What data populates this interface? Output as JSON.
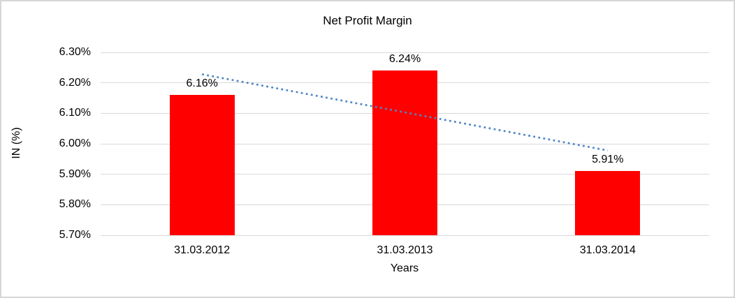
{
  "window": {
    "background_color": "#ffffff",
    "border_color": "#d6d6d6"
  },
  "chart_data": {
    "type": "bar",
    "title": "Net Profit Margin",
    "categories": [
      "31.03.2012",
      "31.03.2013",
      "31.03.2014"
    ],
    "values": [
      6.16,
      6.24,
      5.91
    ],
    "data_labels": [
      "6.16%",
      "6.24%",
      "5.91%"
    ],
    "xlabel": "Years",
    "ylabel": "IN (%)",
    "ylim": [
      5.7,
      6.3
    ],
    "yticks": [
      {
        "value": 6.3,
        "label": "6.30%"
      },
      {
        "value": 6.2,
        "label": "6.20%"
      },
      {
        "value": 6.1,
        "label": "6.10%"
      },
      {
        "value": 6.0,
        "label": "6.00%"
      },
      {
        "value": 5.9,
        "label": "5.90%"
      },
      {
        "value": 5.8,
        "label": "5.80%"
      },
      {
        "value": 5.7,
        "label": "5.70%"
      }
    ],
    "grid": true,
    "legend": false,
    "bar_color": "#ff0000",
    "gridline_color": "#d9d9d9",
    "trendline": {
      "type": "linear",
      "style": "dotted",
      "color": "#4f86c6",
      "start_value": 6.228,
      "end_value": 5.978
    }
  }
}
